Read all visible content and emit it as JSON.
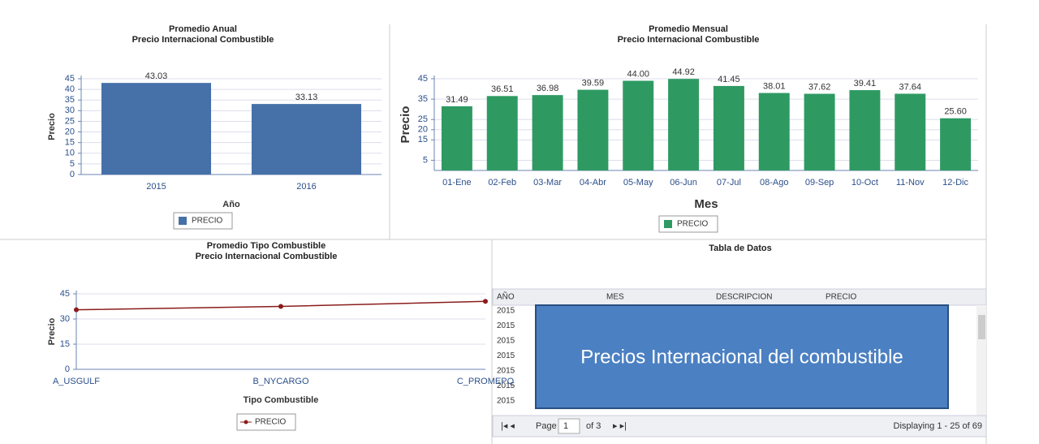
{
  "chart_data": [
    {
      "type": "bar",
      "title": "Promedio Anual",
      "subtitle": "Precio Internacional Combustible",
      "categories": [
        "2015",
        "2016"
      ],
      "x_label": "Año",
      "y_label": "Precio",
      "series": [
        {
          "name": "PRECIO",
          "color": "#4670a8",
          "values": [
            43.03,
            33.13
          ]
        }
      ],
      "ylim": [
        0,
        45
      ],
      "yticks": [
        0,
        5,
        10,
        15,
        20,
        25,
        30,
        35,
        40,
        45
      ],
      "grid": true
    },
    {
      "type": "bar",
      "title": "Promedio Mensual",
      "subtitle": "Precio Internacional Combustible",
      "categories": [
        "01-Ene",
        "02-Feb",
        "03-Mar",
        "04-Abr",
        "05-May",
        "06-Jun",
        "07-Jul",
        "08-Ago",
        "09-Sep",
        "10-Oct",
        "11-Nov",
        "12-Dic"
      ],
      "x_label": "Mes",
      "y_label": "Precio",
      "series": [
        {
          "name": "PRECIO",
          "color": "#2e9a62",
          "values": [
            31.49,
            36.51,
            36.98,
            39.59,
            44.0,
            44.92,
            41.45,
            38.01,
            37.62,
            39.41,
            37.64,
            25.6
          ],
          "value_labels": [
            "31.49",
            "36.51",
            "36.98",
            "39.59",
            "44.00",
            "44.92",
            "41.45",
            "38.01",
            "37.62",
            "39.41",
            "37.64",
            "25.60"
          ]
        }
      ],
      "ylim": [
        0,
        45
      ],
      "yticks": [
        5,
        15,
        20,
        25,
        35,
        45
      ],
      "grid": true
    },
    {
      "type": "line",
      "title": "Promedio Tipo Combustible",
      "subtitle": "Precio Internacional Combustible",
      "categories": [
        "A_USGULF",
        "B_NYCARGO",
        "C_PROMEPQ"
      ],
      "x_label": "Tipo Combustible",
      "y_label": "Precio",
      "series": [
        {
          "name": "PRECIO",
          "color": "#8b1c1c",
          "values": [
            35.5,
            37.5,
            40.5
          ]
        }
      ],
      "ylim": [
        0,
        45
      ],
      "yticks": [
        0,
        15,
        30,
        45
      ],
      "grid": true
    }
  ],
  "table": {
    "title": "Tabla de Datos",
    "columns": [
      "AÑO",
      "MES",
      "DESCRIPCION",
      "PRECIO"
    ],
    "rows": [
      [
        "2015"
      ],
      [
        "2015"
      ],
      [
        "2015"
      ],
      [
        "2015"
      ],
      [
        "2015"
      ],
      [
        "2015"
      ],
      [
        "2015"
      ]
    ],
    "pager": {
      "page": "Page",
      "current": "1",
      "of": "of 3",
      "display": "Displaying 1 - 25 of 69"
    }
  },
  "banner": "Precios Internacional del combustible"
}
